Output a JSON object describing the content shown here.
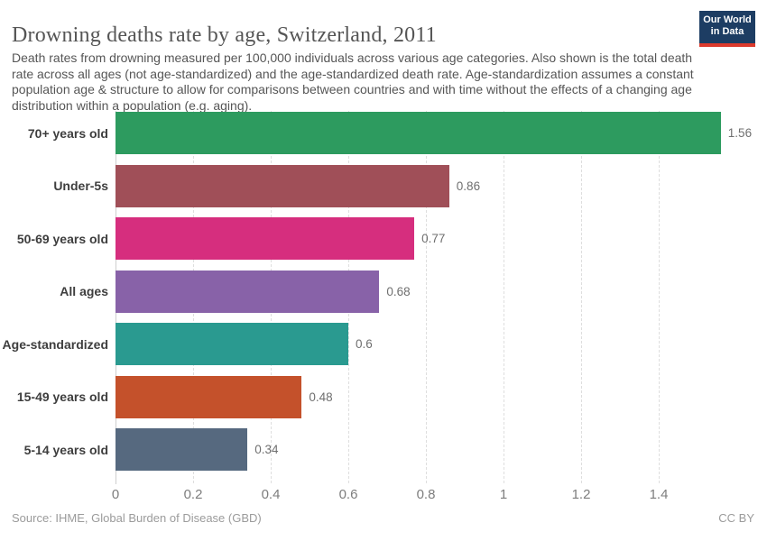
{
  "header": {
    "title": "Drowning deaths rate by age, Switzerland, 2011",
    "subtitle": "Death rates from drowning measured per 100,000 individuals across various age categories. Also shown is the total death rate across all ages (not age-standardized) and the age-standardized death rate. Age-standardization assumes a constant population age & structure to allow for comparisons between countries and with time without the effects of a changing age distribution within a population (e.g. aging).",
    "logo": {
      "line1": "Our World",
      "line2": "in Data",
      "bg_color": "#1d3d63",
      "accent_color": "#dc3a2d"
    }
  },
  "chart_data": {
    "type": "bar",
    "orientation": "horizontal",
    "title": "Drowning deaths rate by age, Switzerland, 2011",
    "xlabel": "",
    "ylabel": "",
    "xlim": [
      0,
      1.56
    ],
    "grid": "dashed-vertical",
    "categories": [
      "70+ years old",
      "Under-5s",
      "50-69 years old",
      "All ages",
      "Age-standardized",
      "15-49 years old",
      "5-14 years old"
    ],
    "values": [
      1.56,
      0.86,
      0.77,
      0.68,
      0.6,
      0.48,
      0.34
    ],
    "value_labels": [
      "1.56",
      "0.86",
      "0.77",
      "0.68",
      "0.6",
      "0.48",
      "0.34"
    ],
    "bar_colors": [
      "#2d9b5f",
      "#a04f58",
      "#d62e7e",
      "#8862a8",
      "#2a9a90",
      "#c4512b",
      "#56697f"
    ],
    "x_ticks": [
      {
        "value": 0,
        "label": "0"
      },
      {
        "value": 0.2,
        "label": "0.2"
      },
      {
        "value": 0.4,
        "label": "0.4"
      },
      {
        "value": 0.6,
        "label": "0.6"
      },
      {
        "value": 0.8,
        "label": "0.8"
      },
      {
        "value": 1,
        "label": "1"
      },
      {
        "value": 1.2,
        "label": "1.2"
      },
      {
        "value": 1.4,
        "label": "1.4"
      }
    ]
  },
  "footer": {
    "source": "Source: IHME, Global Burden of Disease (GBD)",
    "license": "CC BY"
  }
}
